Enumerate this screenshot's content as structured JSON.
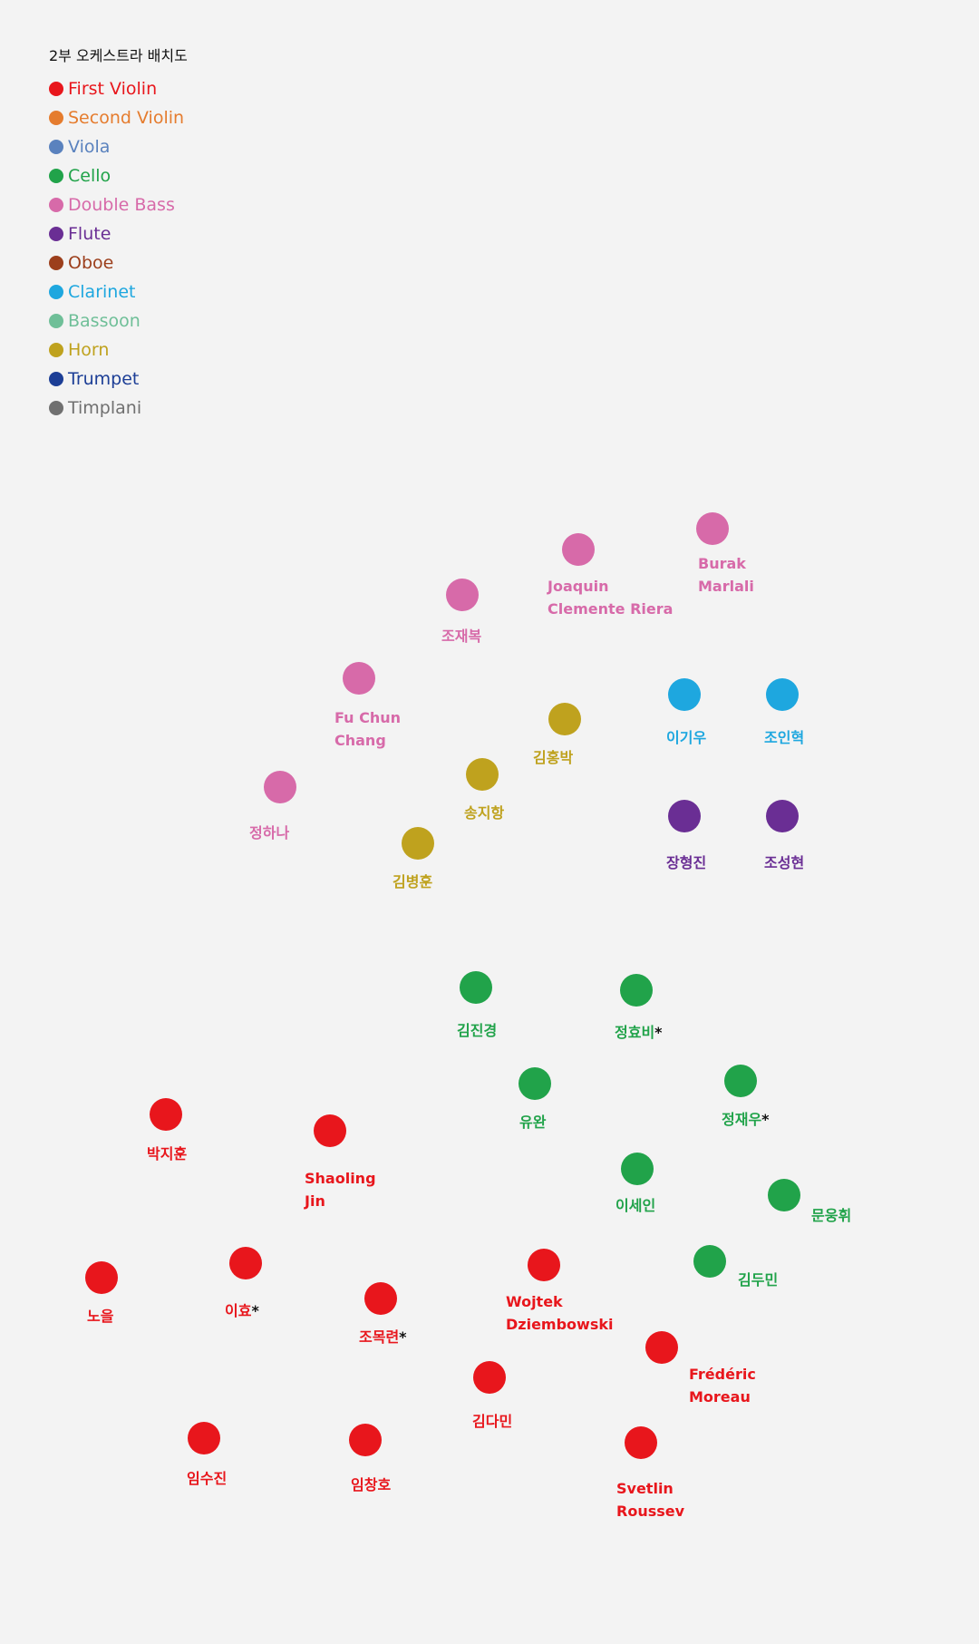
{
  "title": "2부 오케스트라 배치도",
  "legend": [
    {
      "label": "First Violin",
      "color": "#e8161c"
    },
    {
      "label": "Second Violin",
      "color": "#e57c2e"
    },
    {
      "label": "Viola",
      "color": "#5a82be"
    },
    {
      "label": "Cello",
      "color": "#21a34a"
    },
    {
      "label": "Double Bass",
      "color": "#d76aa9"
    },
    {
      "label": "Flute",
      "color": "#6a2e94"
    },
    {
      "label": "Oboe",
      "color": "#9c3f1c"
    },
    {
      "label": "Clarinet",
      "color": "#1ea7df"
    },
    {
      "label": "Bassoon",
      "color": "#6fbf98"
    },
    {
      "label": "Horn",
      "color": "#bfa21e"
    },
    {
      "label": "Trumpet",
      "color": "#1c3e96"
    },
    {
      "label": "Timplani",
      "color": "#707070"
    }
  ],
  "seats": [
    {
      "section": "Double Bass",
      "lines": [
        "Burak",
        "Marlali"
      ]
    },
    {
      "section": "Double Bass",
      "lines": [
        "Joaquin",
        "Clemente Riera"
      ]
    },
    {
      "section": "Double Bass",
      "lines": [
        "조재복"
      ]
    },
    {
      "section": "Double Bass",
      "lines": [
        "Fu Chun",
        "Chang"
      ]
    },
    {
      "section": "Double Bass",
      "lines": [
        "정하나"
      ]
    },
    {
      "section": "Horn",
      "lines": [
        "김홍박"
      ]
    },
    {
      "section": "Horn",
      "lines": [
        "송지항"
      ]
    },
    {
      "section": "Horn",
      "lines": [
        "김병훈"
      ]
    },
    {
      "section": "Clarinet",
      "lines": [
        "이기우"
      ]
    },
    {
      "section": "Clarinet",
      "lines": [
        "조인혁"
      ]
    },
    {
      "section": "Flute",
      "lines": [
        "장형진"
      ]
    },
    {
      "section": "Flute",
      "lines": [
        "조성현"
      ]
    },
    {
      "section": "Cello",
      "lines": [
        "김진경"
      ]
    },
    {
      "section": "Cello",
      "lines": [
        "정효비"
      ],
      "mark": "*"
    },
    {
      "section": "Cello",
      "lines": [
        "유완"
      ]
    },
    {
      "section": "Cello",
      "lines": [
        "정재우"
      ],
      "mark": "*"
    },
    {
      "section": "Cello",
      "lines": [
        "이세인"
      ]
    },
    {
      "section": "Cello",
      "lines": [
        "문웅휘"
      ]
    },
    {
      "section": "Cello",
      "lines": [
        "김두민"
      ]
    },
    {
      "section": "First Violin",
      "lines": [
        "박지훈"
      ]
    },
    {
      "section": "First Violin",
      "lines": [
        "Shaoling",
        "Jin"
      ]
    },
    {
      "section": "First Violin",
      "lines": [
        "노을"
      ]
    },
    {
      "section": "First Violin",
      "lines": [
        "이효"
      ],
      "mark": "*"
    },
    {
      "section": "First Violin",
      "lines": [
        "조목련"
      ],
      "mark": "*"
    },
    {
      "section": "First Violin",
      "lines": [
        "Wojtek",
        "Dziembowski"
      ]
    },
    {
      "section": "First Violin",
      "lines": [
        "Frédéric",
        "Moreau"
      ]
    },
    {
      "section": "First Violin",
      "lines": [
        "김다민"
      ]
    },
    {
      "section": "First Violin",
      "lines": [
        "임수진"
      ]
    },
    {
      "section": "First Violin",
      "lines": [
        "임창호"
      ]
    },
    {
      "section": "First Violin",
      "lines": [
        "Svetlin",
        "Roussev"
      ]
    }
  ]
}
